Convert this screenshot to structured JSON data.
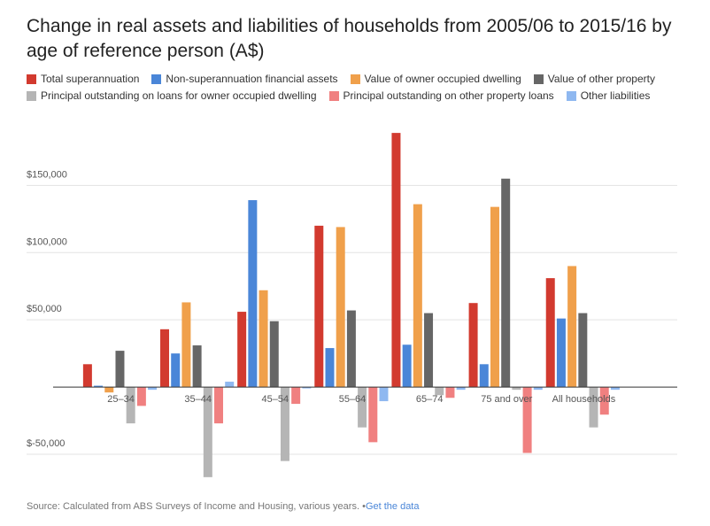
{
  "chart_data": {
    "type": "bar",
    "title": "Change in real assets and liabilities of households from 2005/06 to 2015/16 by age of reference person (A$)",
    "categories": [
      "25–34",
      "35–44",
      "45–54",
      "55–64",
      "65–74",
      "75 and over",
      "All households"
    ],
    "series": [
      {
        "name": "Total superannuation",
        "color": "#d23a2f",
        "values": [
          17000,
          43000,
          56000,
          120000,
          189000,
          62500,
          81000
        ]
      },
      {
        "name": "Non-superannuation financial assets",
        "color": "#4a86d8",
        "values": [
          1000,
          25000,
          139000,
          29000,
          31500,
          17000,
          51000
        ]
      },
      {
        "name": "Value of owner occupied dwelling",
        "color": "#f0a04b",
        "values": [
          -4000,
          63000,
          72000,
          119000,
          136000,
          134000,
          90000
        ]
      },
      {
        "name": "Value of other property",
        "color": "#666666",
        "values": [
          27000,
          31000,
          49000,
          57000,
          55000,
          155000,
          55000
        ]
      },
      {
        "name": "Principal outstanding on loans for owner occupied dwelling",
        "color": "#b5b5b5",
        "values": [
          -27000,
          -67000,
          -55000,
          -30000,
          -6000,
          -2000,
          -30000
        ]
      },
      {
        "name": "Principal outstanding on other property loans",
        "color": "#f08080",
        "values": [
          -14000,
          -27000,
          -12500,
          -41000,
          -8000,
          -49000,
          -20500
        ]
      },
      {
        "name": "Other liabilities",
        "color": "#8fb8f0",
        "values": [
          -2000,
          4000,
          -1000,
          -10500,
          -2000,
          -2000,
          -2000
        ]
      }
    ],
    "ylim": [
      -75000,
      195000
    ],
    "yticks": [
      {
        "value": -50000,
        "label": "$-50,000"
      },
      {
        "value": 50000,
        "label": "$50,000"
      },
      {
        "value": 100000,
        "label": "$100,000"
      },
      {
        "value": 150000,
        "label": "$150,000"
      }
    ],
    "grid": true,
    "source": "Source: Calculated from ABS Surveys of Income and Housing, various years.",
    "source_link": "Get the data"
  }
}
